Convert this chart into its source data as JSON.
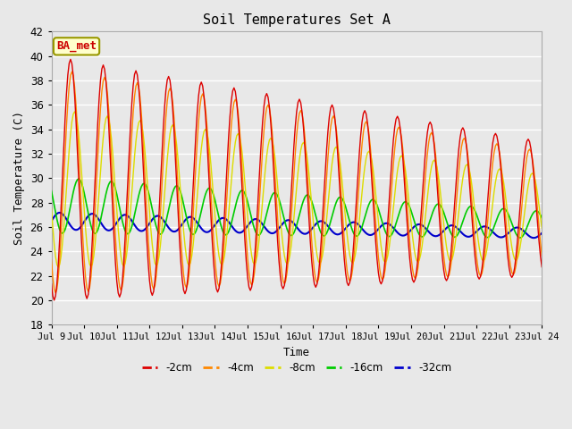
{
  "title": "Soil Temperatures Set A",
  "xlabel": "Time",
  "ylabel": "Soil Temperature (C)",
  "ylim": [
    18,
    42
  ],
  "xlim": [
    0,
    360
  ],
  "annotation_text": "BA_met",
  "annotation_bg": "#ffffcc",
  "annotation_border": "#999900",
  "annotation_text_color": "#cc0000",
  "plot_bg": "#e8e8e8",
  "grid_color": "#ffffff",
  "series": {
    "-2cm": {
      "color": "#dd0000",
      "lw": 1.0
    },
    "-4cm": {
      "color": "#ff8800",
      "lw": 1.0
    },
    "-8cm": {
      "color": "#dddd00",
      "lw": 1.0
    },
    "-16cm": {
      "color": "#00cc00",
      "lw": 1.2
    },
    "-32cm": {
      "color": "#0000cc",
      "lw": 1.5
    }
  },
  "yticks": [
    18,
    20,
    22,
    24,
    26,
    28,
    30,
    32,
    34,
    36,
    38,
    40,
    42
  ],
  "xtick_labels": [
    "Jul 9",
    "Jul 10",
    "Jul 11",
    "Jul 12",
    "Jul 13",
    "Jul 14",
    "Jul 15",
    "Jul 16",
    "Jul 17",
    "Jul 18",
    "Jul 19",
    "Jul 20",
    "Jul 21",
    "Jul 22",
    "Jul 23",
    "Jul 24"
  ],
  "xtick_positions": [
    0,
    24,
    48,
    72,
    96,
    120,
    144,
    168,
    192,
    216,
    240,
    264,
    288,
    312,
    336,
    360
  ],
  "n_hours": 361,
  "figwidth": 6.4,
  "figheight": 4.8,
  "dpi": 100
}
